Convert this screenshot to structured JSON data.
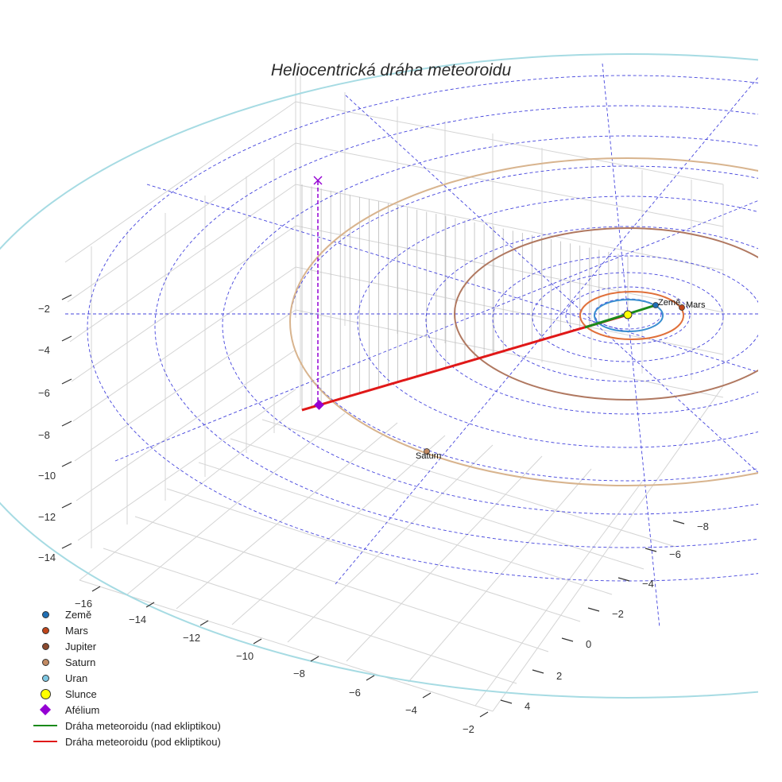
{
  "chart_data": {
    "type": "line",
    "projection": "3d",
    "title": "Heliocentrická dráha meteoroidu",
    "axes": {
      "x": {
        "ticks": [
          "−16",
          "−14",
          "−12",
          "−10",
          "−8",
          "−6",
          "−4",
          "−2"
        ]
      },
      "y": {
        "ticks": [
          "−8",
          "−6",
          "−4",
          "−2",
          "0",
          "2",
          "4"
        ]
      },
      "z": {
        "ticks": [
          "−2",
          "−4",
          "−6",
          "−8",
          "−10",
          "−12",
          "−14"
        ]
      }
    },
    "bodies": [
      {
        "name": "Země",
        "color": "#1f6fb4",
        "orbit_color": "#3a8fd0",
        "label": "Země",
        "show_label": true
      },
      {
        "name": "Mars",
        "color": "#c0451a",
        "orbit_color": "#e0703a",
        "label": "Mars",
        "show_label": true
      },
      {
        "name": "Jupiter",
        "color": "#8b4a2e",
        "orbit_color": "#b07860",
        "label": "Jupiter",
        "show_label": false
      },
      {
        "name": "Saturn",
        "color": "#c28a62",
        "orbit_color": "#d8b48e",
        "label": "Saturn",
        "show_label": true
      },
      {
        "name": "Uran",
        "color": "#7ec8e3",
        "orbit_color": "#a6dbe3",
        "label": "Uran",
        "show_label": false
      }
    ],
    "sun": {
      "name": "Slunce",
      "color": "#ffff00"
    },
    "aphelion": {
      "name": "Afélium",
      "color": "#9400d3"
    },
    "trajectory": [
      {
        "name": "Dráha meteoroidu (nad ekliptikou)",
        "color": "#1a8a1a"
      },
      {
        "name": "Dráha meteoroidu (pod ekliptikou)",
        "color": "#e01818"
      }
    ],
    "legend": [
      {
        "label": "Země",
        "kind": "dot",
        "color": "#1f6fb4"
      },
      {
        "label": "Mars",
        "kind": "dot",
        "color": "#c0451a"
      },
      {
        "label": "Jupiter",
        "kind": "dot",
        "color": "#8b4a2e"
      },
      {
        "label": "Saturn",
        "kind": "dot",
        "color": "#c28a62"
      },
      {
        "label": "Uran",
        "kind": "dot",
        "color": "#7ec8e3"
      },
      {
        "label": "Slunce",
        "kind": "bigdot",
        "color": "#ffff00"
      },
      {
        "label": "Afélium",
        "kind": "diamond",
        "color": "#9400d3"
      },
      {
        "label": "Dráha meteoroidu (nad ekliptikou)",
        "kind": "line",
        "color": "#1a8a1a"
      },
      {
        "label": "Dráha meteoroidu (pod ekliptikou)",
        "kind": "line",
        "color": "#e01818"
      }
    ]
  }
}
